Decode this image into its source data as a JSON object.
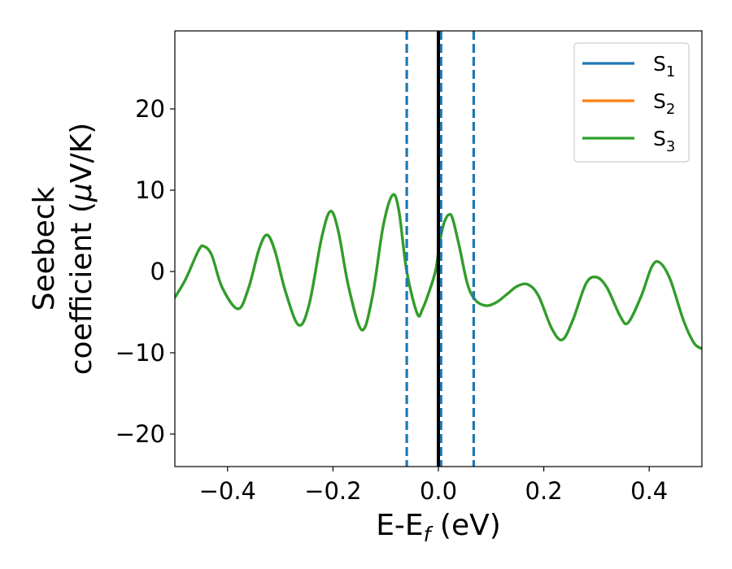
{
  "chart_data": {
    "type": "line",
    "title": "",
    "xlabel": {
      "main": "E-E",
      "sub": "f",
      "unit": " (eV)"
    },
    "ylabel": {
      "line1": "Seebeck",
      "line2_prefix": "coefficient  (",
      "mu": "μ",
      "line2_suffix": "V/K)"
    },
    "xlim": [
      -0.5,
      0.5
    ],
    "ylim": [
      -24,
      29.6
    ],
    "xticks": [
      -0.4,
      -0.2,
      0.0,
      0.2,
      0.4
    ],
    "xtick_labels": [
      "−0.4",
      "−0.2",
      "0.0",
      "0.2",
      "0.4"
    ],
    "yticks": [
      -20,
      -10,
      0,
      10,
      20
    ],
    "ytick_labels": [
      "−20",
      "−10",
      "0",
      "10",
      "20"
    ],
    "grid": false,
    "legend_position": "top-right",
    "series": [
      {
        "name": "S",
        "sub": "1",
        "color": "#1f77b4",
        "x": [
          -0.5,
          -0.48,
          -0.455,
          -0.445,
          -0.43,
          -0.41,
          -0.38,
          -0.36,
          -0.34,
          -0.325,
          -0.31,
          -0.29,
          -0.265,
          -0.245,
          -0.222,
          -0.205,
          -0.19,
          -0.17,
          -0.145,
          -0.125,
          -0.105,
          -0.087,
          -0.075,
          -0.06,
          -0.04,
          -0.03,
          -0.015,
          -0.005,
          0.0,
          0.005,
          0.012,
          0.02,
          0.027,
          0.04,
          0.055,
          0.07,
          0.09,
          0.11,
          0.13,
          0.15,
          0.17,
          0.19,
          0.215,
          0.235,
          0.255,
          0.28,
          0.3,
          0.32,
          0.345,
          0.36,
          0.385,
          0.405,
          0.42,
          0.44,
          0.465,
          0.485,
          0.5
        ],
        "y": [
          -3.2,
          -1.0,
          2.6,
          3.1,
          2.0,
          -2.0,
          -4.6,
          -2.0,
          2.8,
          4.5,
          2.5,
          -2.5,
          -6.6,
          -4.0,
          4.0,
          7.4,
          5.0,
          -2.0,
          -7.2,
          -3.0,
          5.5,
          9.4,
          7.5,
          0.0,
          -5.2,
          -4.6,
          -2.0,
          0.2,
          2.4,
          4.5,
          6.2,
          7.0,
          6.5,
          3.0,
          -1.5,
          -3.5,
          -4.2,
          -3.8,
          -2.8,
          -1.8,
          -1.6,
          -3.0,
          -7.0,
          -8.4,
          -6.0,
          -1.5,
          -0.7,
          -2.0,
          -5.5,
          -6.3,
          -3.0,
          0.6,
          1.1,
          -1.0,
          -6.0,
          -8.8,
          -9.5
        ]
      },
      {
        "name": "S",
        "sub": "2",
        "color": "#ff7f0e",
        "x": [
          -0.5,
          -0.48,
          -0.455,
          -0.445,
          -0.43,
          -0.41,
          -0.38,
          -0.36,
          -0.34,
          -0.325,
          -0.31,
          -0.29,
          -0.265,
          -0.245,
          -0.222,
          -0.205,
          -0.19,
          -0.17,
          -0.145,
          -0.125,
          -0.105,
          -0.087,
          -0.075,
          -0.06,
          -0.04,
          -0.03,
          -0.015,
          -0.005,
          0.0,
          0.005,
          0.012,
          0.02,
          0.027,
          0.04,
          0.055,
          0.07,
          0.09,
          0.11,
          0.13,
          0.15,
          0.17,
          0.19,
          0.215,
          0.235,
          0.255,
          0.28,
          0.3,
          0.32,
          0.345,
          0.36,
          0.385,
          0.405,
          0.42,
          0.44,
          0.465,
          0.485,
          0.5
        ],
        "y": [
          -3.2,
          -1.0,
          2.6,
          3.1,
          2.0,
          -2.0,
          -4.6,
          -2.0,
          2.8,
          4.5,
          2.5,
          -2.5,
          -6.6,
          -4.0,
          4.0,
          7.4,
          5.0,
          -2.0,
          -7.2,
          -3.0,
          5.5,
          9.4,
          7.5,
          0.0,
          -5.2,
          -4.6,
          -2.0,
          0.2,
          2.4,
          4.5,
          6.2,
          7.0,
          6.5,
          3.0,
          -1.5,
          -3.5,
          -4.2,
          -3.8,
          -2.8,
          -1.8,
          -1.6,
          -3.0,
          -7.0,
          -8.4,
          -6.0,
          -1.5,
          -0.7,
          -2.0,
          -5.5,
          -6.3,
          -3.0,
          0.6,
          1.1,
          -1.0,
          -6.0,
          -8.8,
          -9.5
        ]
      },
      {
        "name": "S",
        "sub": "3",
        "color": "#2ca02c",
        "x": [
          -0.5,
          -0.48,
          -0.455,
          -0.445,
          -0.43,
          -0.41,
          -0.38,
          -0.36,
          -0.34,
          -0.325,
          -0.31,
          -0.29,
          -0.265,
          -0.245,
          -0.222,
          -0.205,
          -0.19,
          -0.17,
          -0.145,
          -0.125,
          -0.105,
          -0.087,
          -0.075,
          -0.06,
          -0.04,
          -0.03,
          -0.015,
          -0.005,
          0.0,
          0.005,
          0.012,
          0.02,
          0.027,
          0.04,
          0.055,
          0.07,
          0.09,
          0.11,
          0.13,
          0.15,
          0.17,
          0.19,
          0.215,
          0.235,
          0.255,
          0.28,
          0.3,
          0.32,
          0.345,
          0.36,
          0.385,
          0.405,
          0.42,
          0.44,
          0.465,
          0.485,
          0.5
        ],
        "y": [
          -3.2,
          -1.0,
          2.6,
          3.1,
          2.0,
          -2.0,
          -4.6,
          -2.0,
          2.8,
          4.5,
          2.5,
          -2.5,
          -6.6,
          -4.0,
          4.0,
          7.4,
          5.0,
          -2.0,
          -7.2,
          -3.0,
          5.5,
          9.4,
          7.5,
          0.0,
          -5.2,
          -4.6,
          -2.0,
          0.2,
          2.4,
          4.5,
          6.2,
          7.0,
          6.5,
          3.0,
          -1.5,
          -3.5,
          -4.2,
          -3.8,
          -2.8,
          -1.8,
          -1.6,
          -3.0,
          -7.0,
          -8.4,
          -6.0,
          -1.5,
          -0.7,
          -2.0,
          -5.5,
          -6.3,
          -3.0,
          0.6,
          1.1,
          -1.0,
          -6.0,
          -8.8,
          -9.5
        ]
      }
    ],
    "reference_lines": [
      {
        "x": -0.06,
        "style": "dashed",
        "color": "#1f77b4"
      },
      {
        "x": 0.005,
        "style": "dashed",
        "color": "#1f77b4"
      },
      {
        "x": 0.067,
        "style": "dashed",
        "color": "#1f77b4"
      },
      {
        "x": 0.0,
        "style": "solid",
        "color": "#000000"
      }
    ]
  }
}
